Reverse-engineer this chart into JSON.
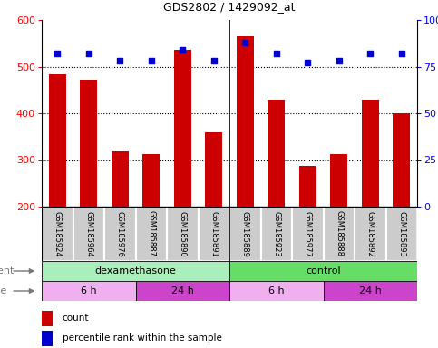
{
  "title": "GDS2802 / 1429092_at",
  "samples": [
    "GSM185924",
    "GSM185964",
    "GSM185976",
    "GSM185887",
    "GSM185890",
    "GSM185891",
    "GSM185889",
    "GSM185923",
    "GSM185977",
    "GSM185888",
    "GSM185892",
    "GSM185893"
  ],
  "counts": [
    484,
    472,
    318,
    312,
    535,
    360,
    565,
    430,
    288,
    312,
    430,
    400
  ],
  "percentiles": [
    82,
    82,
    78,
    78,
    84,
    78,
    88,
    82,
    77,
    78,
    82,
    82
  ],
  "y_min": 200,
  "y_max": 600,
  "y_ticks": [
    200,
    300,
    400,
    500,
    600
  ],
  "y2_ticks": [
    0,
    25,
    50,
    75,
    100
  ],
  "bar_color": "#cc0000",
  "dot_color": "#0000cc",
  "agent_groups": [
    {
      "label": "dexamethasone",
      "start": 0,
      "end": 6,
      "color": "#aaeebb"
    },
    {
      "label": "control",
      "start": 6,
      "end": 12,
      "color": "#66dd66"
    }
  ],
  "time_groups": [
    {
      "label": "6 h",
      "start": 0,
      "end": 3,
      "color": "#f0b0f0"
    },
    {
      "label": "24 h",
      "start": 3,
      "end": 6,
      "color": "#cc44cc"
    },
    {
      "label": "6 h",
      "start": 6,
      "end": 9,
      "color": "#f0b0f0"
    },
    {
      "label": "24 h",
      "start": 9,
      "end": 12,
      "color": "#cc44cc"
    }
  ],
  "bar_bottom": 200,
  "percentile_scale_min": 0,
  "percentile_scale_max": 100
}
